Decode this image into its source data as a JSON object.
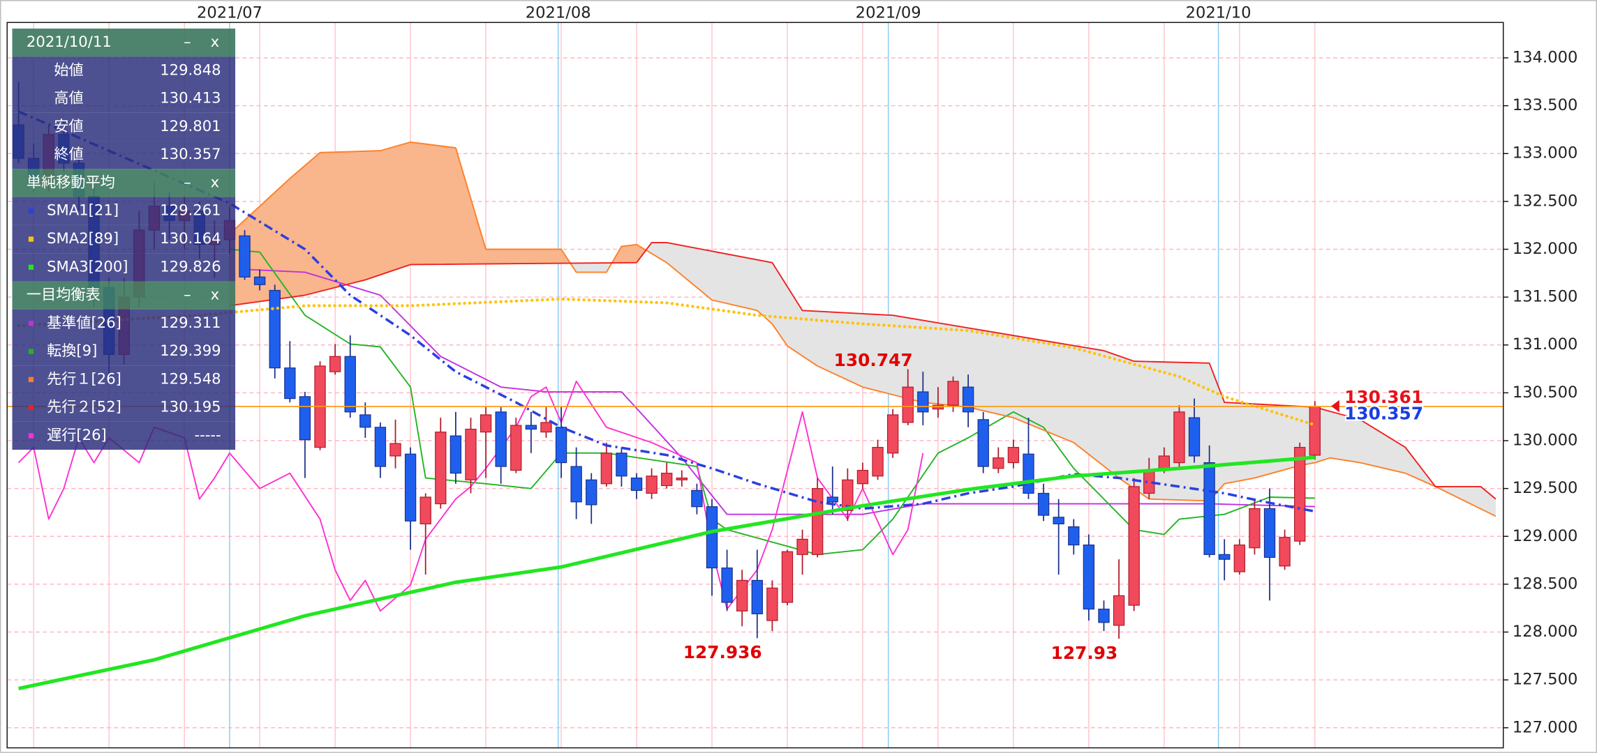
{
  "chart_data": {
    "type": "candlestick",
    "xlim": [
      0.24,
      99.5
    ],
    "ylim": [
      126.79,
      134.37
    ],
    "xticks": [
      {
        "value": 15,
        "label": "2021/07"
      },
      {
        "value": 36.8,
        "label": "2021/08"
      },
      {
        "value": 58.7,
        "label": "2021/09"
      },
      {
        "value": 80.6,
        "label": "2021/10"
      }
    ],
    "yticks": [
      {
        "value": 127,
        "label": "127.000"
      },
      {
        "value": 127.5,
        "label": "127.500"
      },
      {
        "value": 128,
        "label": "128.000"
      },
      {
        "value": 128.5,
        "label": "128.500"
      },
      {
        "value": 129,
        "label": "129.000"
      },
      {
        "value": 129.5,
        "label": "129.500"
      },
      {
        "value": 130,
        "label": "130.000"
      },
      {
        "value": 130.5,
        "label": "130.500"
      },
      {
        "value": 131,
        "label": "131.000"
      },
      {
        "value": 131.5,
        "label": "131.500"
      },
      {
        "value": 132,
        "label": "132.000"
      },
      {
        "value": 132.5,
        "label": "132.500"
      },
      {
        "value": 133,
        "label": "133.000"
      },
      {
        "value": 133.5,
        "label": "133.500"
      },
      {
        "value": 134,
        "label": "134.000"
      }
    ],
    "minor_xgrid": [
      2,
      7,
      12,
      17,
      22,
      27,
      32,
      37,
      42,
      47,
      52,
      57,
      62,
      67,
      72,
      77,
      82,
      87
    ],
    "grid": true,
    "up_color": "#f04a5c",
    "down_color": "#1f5fee",
    "ohlc": {
      "x": [
        1,
        2,
        3,
        4,
        5,
        6,
        7,
        8,
        9,
        10,
        11,
        12,
        13,
        14,
        15,
        16,
        17,
        18,
        19,
        20,
        21,
        22,
        23,
        24,
        25,
        26,
        27,
        28,
        29,
        30,
        31,
        32,
        33,
        34,
        35,
        36,
        37,
        38,
        39,
        40,
        41,
        42,
        43,
        44,
        45,
        46,
        47,
        48,
        49,
        50,
        51,
        52,
        53,
        54,
        55,
        56,
        57,
        58,
        59,
        60,
        61,
        62,
        63,
        64,
        65,
        66,
        67,
        68,
        69,
        70,
        71,
        72,
        73,
        74,
        75,
        76,
        77,
        78,
        79,
        80,
        81,
        82,
        83,
        84,
        85,
        86,
        87
      ],
      "open": [
        133.3,
        132.95,
        132.7,
        133.2,
        132.9,
        132.55,
        131.6,
        130.9,
        131.5,
        132.2,
        132.45,
        132.3,
        132.4,
        132.05,
        132.1,
        132.14,
        131.71,
        131.57,
        130.76,
        130.46,
        129.93,
        130.72,
        130.88,
        130.27,
        130.14,
        129.84,
        129.86,
        129.13,
        129.34,
        130.05,
        129.59,
        130.09,
        130.3,
        129.69,
        130.16,
        130.09,
        130.14,
        129.73,
        129.59,
        129.55,
        129.87,
        129.61,
        129.45,
        129.53,
        129.59,
        129.48,
        129.31,
        128.67,
        128.22,
        128.54,
        128.12,
        128.31,
        128.81,
        128.81,
        129.41,
        129.27,
        129.55,
        129.63,
        129.87,
        130.19,
        130.51,
        130.33,
        130.37,
        130.56,
        130.22,
        129.71,
        129.77,
        129.86,
        129.45,
        129.2,
        129.1,
        128.91,
        128.24,
        128.07,
        128.28,
        129.45,
        129.69,
        129.77,
        130.24,
        129.77,
        128.81,
        128.63,
        128.88,
        129.29,
        128.69,
        128.95,
        129.848
      ],
      "high": [
        133.75,
        133.1,
        133.3,
        133.35,
        133.0,
        132.65,
        131.7,
        131.7,
        132.4,
        132.7,
        132.6,
        132.55,
        132.5,
        132.3,
        132.45,
        132.2,
        131.79,
        131.63,
        131.04,
        130.51,
        130.83,
        131.01,
        131.1,
        130.4,
        130.19,
        130.22,
        129.93,
        129.45,
        130.24,
        130.3,
        130.24,
        130.35,
        130.35,
        130.24,
        130.3,
        130.35,
        130.35,
        129.93,
        129.66,
        129.98,
        129.93,
        129.66,
        129.71,
        129.77,
        129.69,
        129.55,
        129.39,
        128.86,
        128.65,
        128.86,
        128.54,
        128.86,
        129.07,
        129.61,
        129.73,
        129.71,
        129.77,
        130.01,
        130.33,
        130.747,
        130.72,
        130.56,
        130.67,
        130.69,
        130.3,
        129.93,
        130.01,
        130.24,
        129.55,
        129.39,
        129.18,
        129.02,
        128.33,
        128.76,
        129.61,
        129.82,
        129.93,
        130.37,
        130.44,
        129.95,
        128.97,
        128.97,
        129.39,
        129.5,
        129.07,
        129.98,
        130.413
      ],
      "low": [
        132.9,
        132.6,
        132.6,
        132.8,
        132.4,
        131.4,
        130.6,
        130.8,
        131.4,
        132.0,
        132.1,
        132.0,
        131.9,
        131.7,
        131.95,
        131.68,
        131.57,
        130.65,
        130.4,
        129.61,
        129.9,
        130.69,
        130.24,
        130.03,
        129.61,
        129.71,
        128.86,
        128.6,
        129.29,
        129.55,
        129.45,
        129.61,
        129.55,
        129.66,
        129.87,
        130.03,
        129.61,
        129.18,
        129.13,
        129.52,
        129.52,
        129.39,
        129.39,
        129.5,
        129.52,
        129.23,
        128.38,
        128.22,
        128.06,
        127.936,
        128.01,
        128.28,
        128.6,
        128.78,
        129.23,
        129.16,
        129.5,
        129.59,
        129.82,
        130.16,
        130.16,
        130.24,
        130.3,
        130.14,
        129.66,
        129.66,
        129.71,
        129.39,
        129.16,
        128.6,
        128.81,
        128.12,
        128.01,
        127.93,
        128.22,
        129.39,
        129.66,
        129.71,
        129.77,
        128.78,
        128.54,
        128.6,
        128.81,
        128.33,
        128.65,
        128.91,
        129.801
      ],
      "close": [
        132.95,
        132.7,
        133.2,
        132.9,
        132.55,
        131.6,
        130.9,
        131.5,
        132.2,
        132.45,
        132.3,
        132.4,
        132.05,
        132.1,
        132.3,
        131.71,
        131.63,
        130.76,
        130.44,
        130.01,
        130.78,
        130.88,
        130.3,
        130.14,
        129.73,
        129.97,
        129.16,
        129.41,
        130.09,
        129.66,
        130.12,
        130.27,
        129.73,
        130.16,
        130.12,
        130.19,
        129.77,
        129.36,
        129.33,
        129.87,
        129.63,
        129.48,
        129.63,
        129.66,
        129.61,
        129.31,
        128.67,
        128.31,
        128.54,
        128.19,
        128.46,
        128.84,
        128.97,
        129.5,
        129.36,
        129.59,
        129.69,
        129.93,
        130.27,
        130.56,
        130.3,
        130.37,
        130.62,
        130.3,
        129.73,
        129.82,
        129.93,
        129.45,
        129.22,
        129.13,
        128.91,
        128.24,
        128.1,
        128.38,
        129.52,
        129.69,
        129.84,
        130.3,
        129.84,
        128.81,
        128.76,
        128.91,
        129.29,
        128.78,
        128.99,
        129.93,
        130.357
      ]
    },
    "series": [
      {
        "name": "SMA1[21]",
        "color": "#2b3fe0",
        "style": "dashdot",
        "legend_value": 129.261,
        "x": [
          1,
          15,
          20,
          23,
          27,
          30,
          34,
          37,
          40,
          44,
          47,
          50,
          54,
          57,
          61,
          64,
          67,
          71,
          74,
          78,
          81,
          84,
          87
        ],
        "values": [
          133.44,
          132.48,
          132.0,
          131.52,
          131.1,
          130.72,
          130.4,
          130.14,
          129.95,
          129.85,
          129.71,
          129.55,
          129.36,
          129.29,
          129.34,
          129.45,
          129.52,
          129.65,
          129.61,
          129.52,
          129.45,
          129.35,
          129.261
        ]
      },
      {
        "name": "SMA2[89]",
        "color": "#ffc20e",
        "style": "dotted",
        "legend_value": 130.164,
        "x": [
          1,
          13,
          20,
          27,
          37,
          44,
          50,
          57,
          64,
          71,
          78,
          81,
          87
        ],
        "values": [
          131.2,
          131.31,
          131.41,
          131.41,
          131.48,
          131.44,
          131.31,
          131.22,
          131.15,
          130.97,
          130.67,
          130.46,
          130.164
        ]
      },
      {
        "name": "SMA3[200]",
        "color": "#22e622",
        "style": "bold",
        "legend_value": 129.826,
        "x": [
          1,
          10,
          20,
          30,
          37,
          47,
          57,
          64,
          71,
          78,
          87
        ],
        "values": [
          127.41,
          127.71,
          128.17,
          128.52,
          128.68,
          129.05,
          129.32,
          129.49,
          129.63,
          129.71,
          129.826
        ]
      },
      {
        "name": "基準値[26]",
        "color": "#c030e0",
        "style": "solid",
        "legend_value": 129.311,
        "x": [
          16,
          20,
          25,
          29,
          33,
          36,
          41,
          45,
          48,
          57,
          61,
          70,
          80,
          87
        ],
        "values": [
          131.79,
          131.76,
          131.52,
          130.88,
          130.56,
          130.51,
          130.51,
          129.82,
          129.23,
          129.23,
          129.34,
          129.34,
          129.34,
          129.311
        ]
      },
      {
        "name": "転換[9]",
        "color": "#22b422",
        "style": "solid",
        "legend_value": 129.399,
        "x": [
          15,
          17,
          20,
          23,
          25,
          27,
          28,
          32,
          35,
          37,
          40,
          46,
          47,
          48,
          54,
          57,
          59,
          62,
          64,
          67,
          69,
          71,
          73,
          75,
          77,
          78,
          81,
          84,
          87
        ],
        "values": [
          132.0,
          131.97,
          131.31,
          131.01,
          130.98,
          130.56,
          129.61,
          129.55,
          129.5,
          129.87,
          129.87,
          129.73,
          129.18,
          129.07,
          128.81,
          128.86,
          129.18,
          129.87,
          130.03,
          130.3,
          130.14,
          129.71,
          129.39,
          129.07,
          129.02,
          129.18,
          129.23,
          129.41,
          129.399
        ]
      },
      {
        "name": "先行１[26]",
        "color": "#ff7f27",
        "style": "solid",
        "legend_value": 129.548,
        "x": [
          15,
          19,
          21,
          25,
          27,
          30,
          31,
          32,
          37,
          38,
          40,
          41,
          42,
          44,
          47,
          50,
          51,
          52,
          54,
          57,
          61,
          64,
          67,
          71,
          74,
          76,
          80,
          81,
          83,
          86,
          87,
          88,
          90,
          93,
          95,
          99
        ],
        "values": [
          132.16,
          132.74,
          133.01,
          133.03,
          133.12,
          133.06,
          132.53,
          132.0,
          132.0,
          131.76,
          131.76,
          132.03,
          132.05,
          131.86,
          131.47,
          131.36,
          131.22,
          130.99,
          130.78,
          130.56,
          130.4,
          130.35,
          130.24,
          129.98,
          129.61,
          129.39,
          129.37,
          129.55,
          129.61,
          129.74,
          129.77,
          129.82,
          129.77,
          129.66,
          129.52,
          129.21
        ]
      },
      {
        "name": "先行２[52]",
        "color": "#ee2020",
        "style": "solid",
        "legend_value": 130.195,
        "x": [
          15,
          20,
          24,
          27,
          42,
          43,
          44,
          51,
          53,
          59,
          73,
          75,
          80,
          81,
          87,
          90,
          93,
          95,
          98,
          99
        ],
        "values": [
          131.41,
          131.52,
          131.68,
          131.84,
          131.86,
          132.07,
          132.07,
          131.86,
          131.36,
          131.31,
          130.94,
          130.83,
          130.81,
          130.4,
          130.35,
          130.22,
          129.93,
          129.52,
          129.52,
          129.39
        ]
      },
      {
        "name": "遅行[26]",
        "color": "#ff2fd2",
        "style": "solid",
        "legend_value": "-----",
        "x": [
          1,
          2,
          3,
          4,
          5,
          6,
          7,
          9,
          10,
          12,
          13,
          14,
          15,
          17,
          19,
          21,
          22,
          23,
          24,
          25,
          27,
          28,
          30,
          31,
          32,
          34,
          35,
          36,
          37,
          38,
          40,
          43,
          46,
          47,
          48,
          50,
          51,
          53,
          54,
          56,
          57,
          59,
          60,
          61
        ],
        "values": [
          129.77,
          129.93,
          129.18,
          129.5,
          130.03,
          129.77,
          130.03,
          129.77,
          130.14,
          130.03,
          129.39,
          129.61,
          129.87,
          129.5,
          129.66,
          129.18,
          128.65,
          128.33,
          128.54,
          128.22,
          128.49,
          128.97,
          129.39,
          129.52,
          129.71,
          130.14,
          130.46,
          130.56,
          130.19,
          130.62,
          130.14,
          129.98,
          129.77,
          128.86,
          128.24,
          128.65,
          129.07,
          130.3,
          129.61,
          129.18,
          129.5,
          128.81,
          129.07,
          129.87
        ]
      }
    ],
    "cloud": {
      "between": [
        5,
        6
      ],
      "colors": [
        "#f9b58c",
        "#e4e4e4"
      ]
    },
    "annotations": [
      {
        "x": 60,
        "value": 130.747,
        "position": "above",
        "color": "#e00000"
      },
      {
        "x": 50,
        "value": 127.936,
        "position": "below",
        "color": "#e00000"
      },
      {
        "x": 74,
        "value": 127.93,
        "position": "below",
        "color": "#e00000"
      }
    ],
    "price_line_color": "#ff9a1a",
    "price_labels": [
      {
        "value": 130.361,
        "color": "#e8101a"
      },
      {
        "value": 130.357,
        "color": "#1a3fe0"
      }
    ]
  },
  "info_panel": {
    "minimize": "–",
    "close": "x",
    "date": "2021/10/11",
    "ohlc": [
      {
        "label": "始値",
        "value": 129.848
      },
      {
        "label": "高値",
        "value": 130.413
      },
      {
        "label": "安値",
        "value": 129.801
      },
      {
        "label": "終値",
        "value": 130.357
      }
    ],
    "sections": [
      {
        "title": "単純移動平均",
        "series": [
          0,
          1,
          2
        ]
      },
      {
        "title": "一目均衡表",
        "series": [
          3,
          4,
          5,
          6,
          7
        ]
      }
    ]
  }
}
